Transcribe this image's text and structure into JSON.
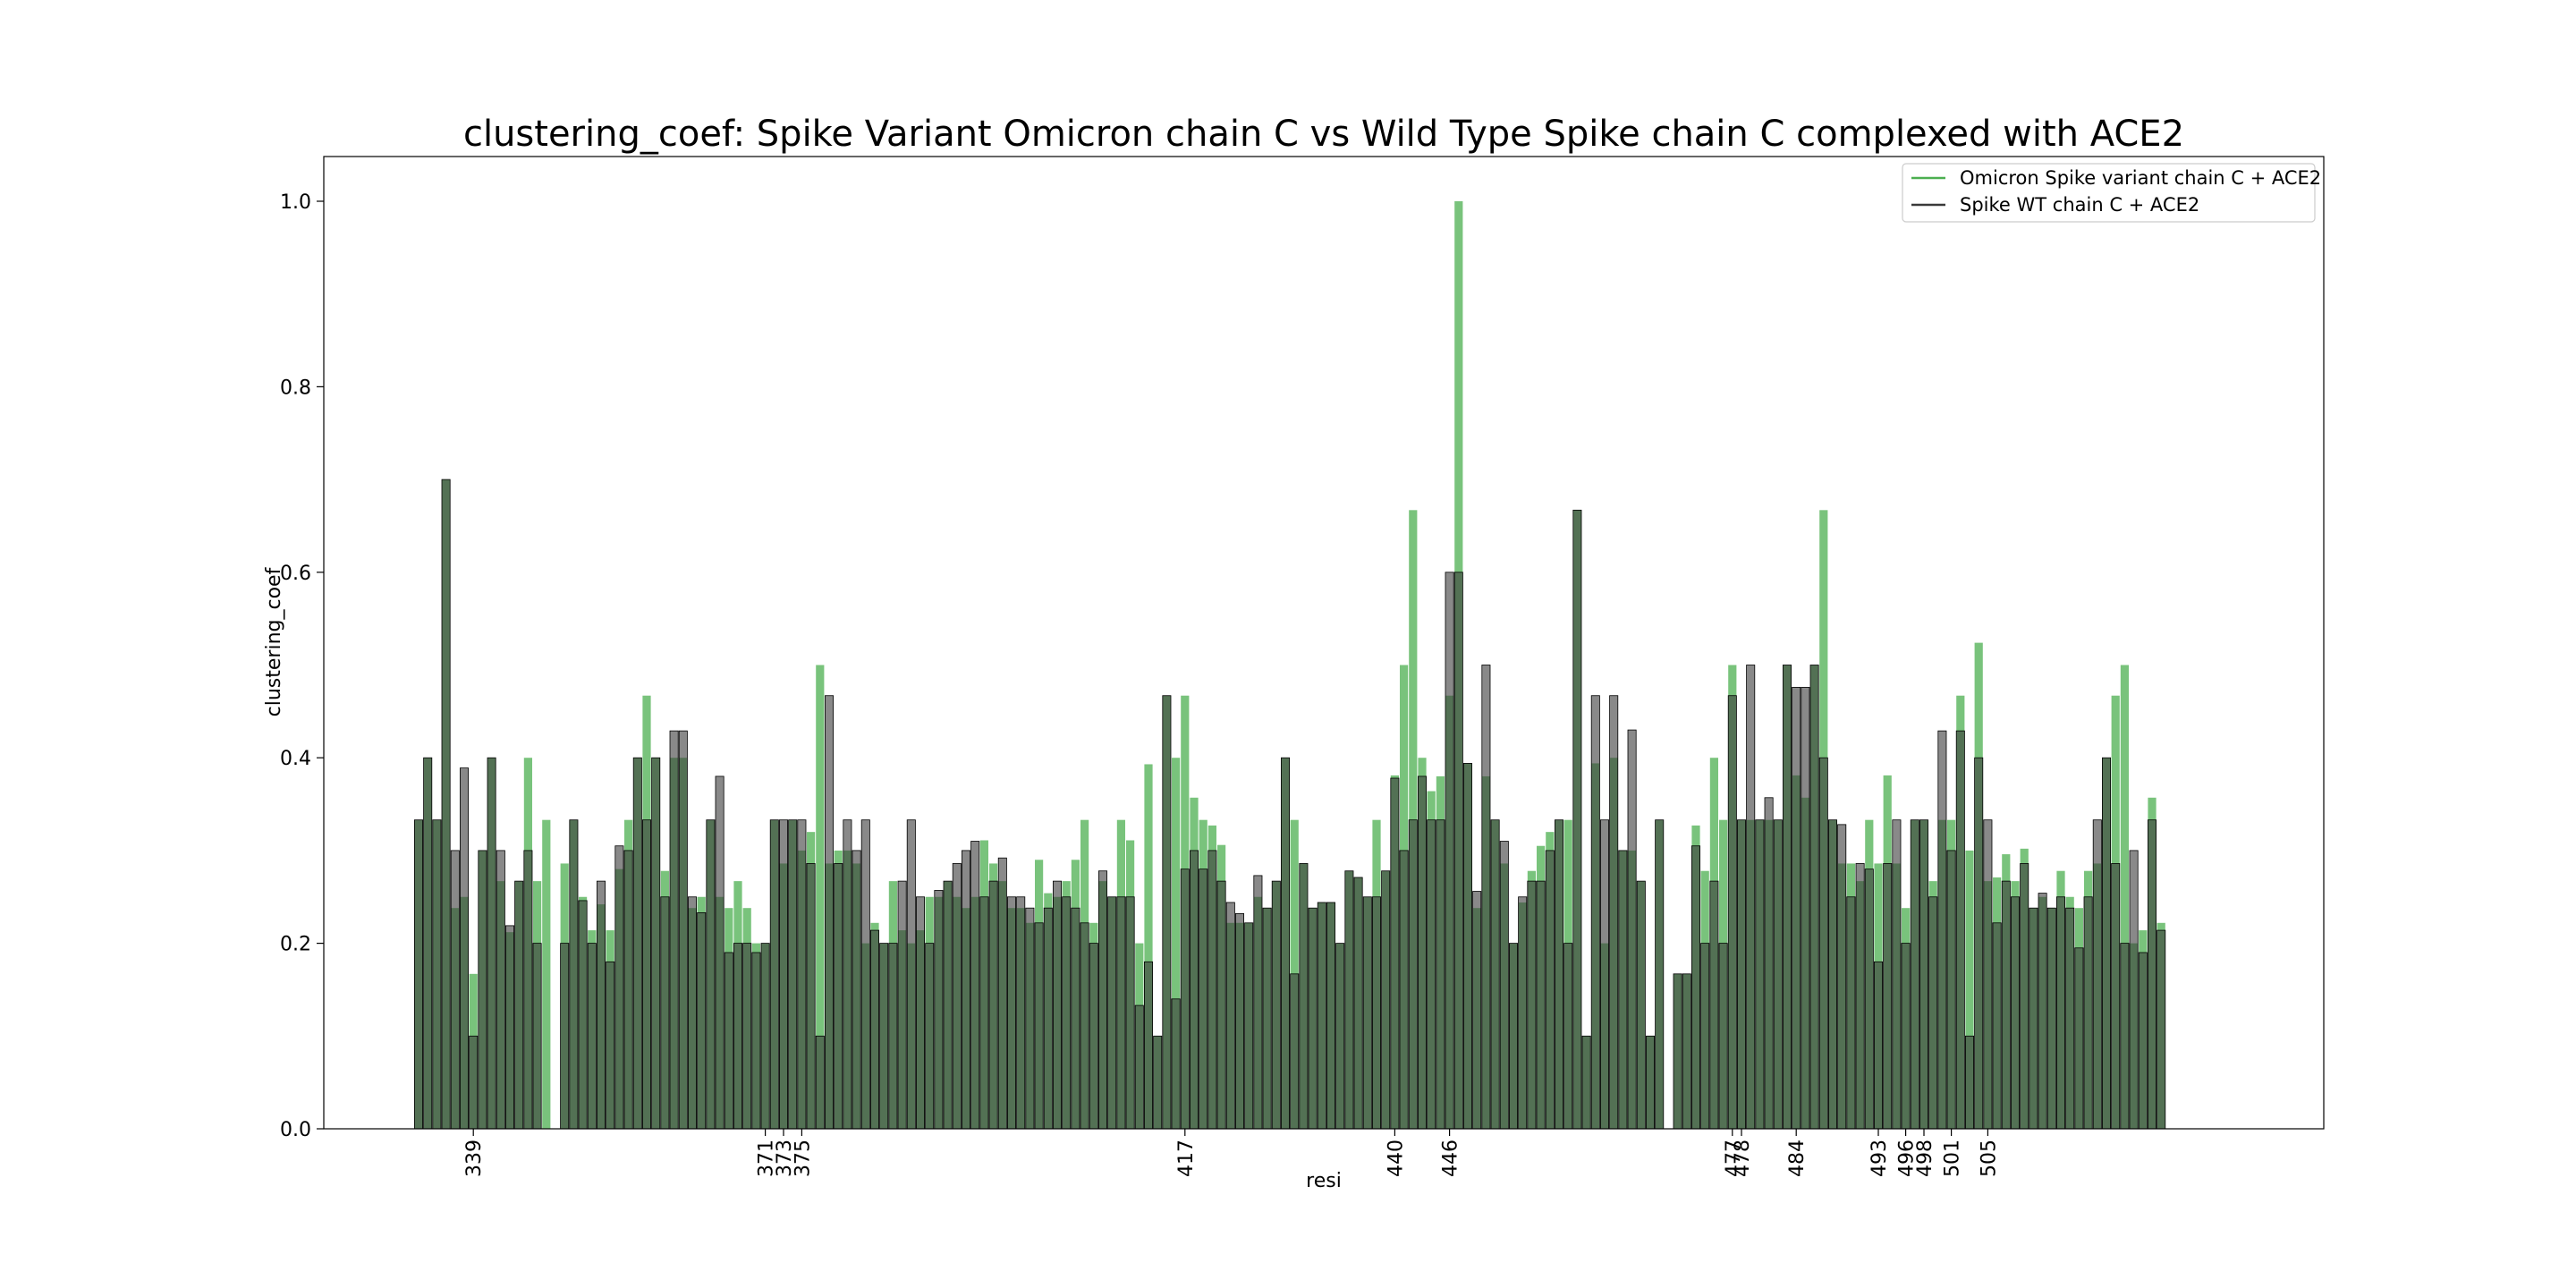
{
  "chart_data": {
    "type": "bar",
    "title": "clustering_coef: Spike Variant Omicron chain C vs Wild Type Spike chain C complexed with ACE2",
    "xlabel": "resi",
    "ylabel": "clustering_coef",
    "ylim": [
      0,
      1.05
    ],
    "yticks": [
      "0.0",
      "0.2",
      "0.4",
      "0.6",
      "0.8",
      "1.0"
    ],
    "xticks": [
      {
        "label": "339",
        "index": 6
      },
      {
        "label": "371",
        "index": 38
      },
      {
        "label": "373",
        "index": 40
      },
      {
        "label": "375",
        "index": 42
      },
      {
        "label": "417",
        "index": 84
      },
      {
        "label": "440",
        "index": 107
      },
      {
        "label": "446",
        "index": 113
      },
      {
        "label": "477",
        "index": 144
      },
      {
        "label": "478",
        "index": 145
      },
      {
        "label": "484",
        "index": 151
      },
      {
        "label": "493",
        "index": 160
      },
      {
        "label": "496",
        "index": 163
      },
      {
        "label": "498",
        "index": 165
      },
      {
        "label": "501",
        "index": 168
      },
      {
        "label": "505",
        "index": 172
      }
    ],
    "grid": false,
    "legend_position": "top-right",
    "series": [
      {
        "name": "Omicron Spike variant chain C + ACE2",
        "color": "#4caf50",
        "values": [
          0.333,
          0.4,
          0.333,
          0.7,
          0.238,
          0.25,
          0.167,
          0.3,
          0.4,
          0.267,
          0.212,
          0.267,
          0.4,
          0.267,
          0.333,
          0,
          0.286,
          0.333,
          0.25,
          0.214,
          0.242,
          0.214,
          0.28,
          0.333,
          0.4,
          0.467,
          0.4,
          0.278,
          0.4,
          0.4,
          0.238,
          0.25,
          0.333,
          0.25,
          0.238,
          0.267,
          0.238,
          0.2,
          0.2,
          0.333,
          0.286,
          0.333,
          0.3,
          0.32,
          0.5,
          0.286,
          0.3,
          0.3,
          0.286,
          0.2,
          0.222,
          0.2,
          0.267,
          0.214,
          0.2,
          0.214,
          0.25,
          0.25,
          0.267,
          0.25,
          0.238,
          0.25,
          0.311,
          0.286,
          0.267,
          0.238,
          0.238,
          0.222,
          0.29,
          0.254,
          0.25,
          0.267,
          0.29,
          0.333,
          0.222,
          0.267,
          0.25,
          0.333,
          0.311,
          0.2,
          0.393,
          0.1,
          0.467,
          0.4,
          0.467,
          0.357,
          0.333,
          0.327,
          0.306,
          0.222,
          0.222,
          0.222,
          0.25,
          0.238,
          0.267,
          0.4,
          0.333,
          0.286,
          0.238,
          0.244,
          0.244,
          0.2,
          0.278,
          0.271,
          0.25,
          0.333,
          0.278,
          0.381,
          0.5,
          0.667,
          0.4,
          0.364,
          0.38,
          0.467,
          1.0,
          0.394,
          0.238,
          0.38,
          0.333,
          0.286,
          0.2,
          0.244,
          0.278,
          0.305,
          0.32,
          0.333,
          0.333,
          0.667,
          0.1,
          0.394,
          0.2,
          0.4,
          0.3,
          0.3,
          0.267,
          0.1,
          0.333,
          0,
          0.167,
          0.167,
          0.327,
          0.278,
          0.4,
          0.333,
          0.5,
          0.333,
          0.333,
          0.333,
          0.333,
          0.333,
          0.5,
          0.381,
          0.357,
          0.5,
          0.667,
          0.333,
          0.286,
          0.286,
          0.267,
          0.333,
          0.286,
          0.381,
          0.286,
          0.238,
          0.333,
          0.333,
          0.267,
          0.333,
          0.333,
          0.467,
          0.3,
          0.524,
          0.267,
          0.271,
          0.296,
          0.267,
          0.302,
          0.238,
          0.25,
          0.238,
          0.278,
          0.25,
          0.238,
          0.278,
          0.286,
          0.4,
          0.467,
          0.5,
          0.2,
          0.214,
          0.357,
          0.222
        ]
      },
      {
        "name": "Spike WT chain C + ACE2",
        "color": "#3a3a3a",
        "values": [
          0.333,
          0.4,
          0.333,
          0.7,
          0.3,
          0.389,
          0.1,
          0.3,
          0.4,
          0.3,
          0.219,
          0.267,
          0.3,
          0.2,
          0,
          0,
          0.2,
          0.333,
          0.246,
          0.2,
          0.267,
          0.18,
          0.305,
          0.3,
          0.4,
          0.333,
          0.4,
          0.25,
          0.429,
          0.429,
          0.25,
          0.233,
          0.333,
          0.38,
          0.19,
          0.2,
          0.2,
          0.19,
          0.2,
          0.333,
          0.333,
          0.333,
          0.333,
          0.286,
          0.1,
          0.467,
          0.286,
          0.333,
          0.3,
          0.333,
          0.214,
          0.2,
          0.2,
          0.267,
          0.333,
          0.25,
          0.2,
          0.257,
          0.267,
          0.286,
          0.3,
          0.31,
          0.25,
          0.267,
          0.292,
          0.25,
          0.25,
          0.238,
          0.222,
          0.238,
          0.267,
          0.25,
          0.238,
          0.222,
          0.2,
          0.278,
          0.25,
          0.25,
          0.25,
          0.133,
          0.18,
          0.1,
          0.467,
          0.14,
          0.28,
          0.3,
          0.28,
          0.3,
          0.267,
          0.244,
          0.232,
          0.222,
          0.273,
          0.238,
          0.267,
          0.4,
          0.167,
          0.286,
          0.238,
          0.244,
          0.244,
          0.2,
          0.278,
          0.271,
          0.25,
          0.25,
          0.278,
          0.378,
          0.3,
          0.333,
          0.38,
          0.333,
          0.333,
          0.6,
          0.6,
          0.394,
          0.256,
          0.5,
          0.333,
          0.31,
          0.2,
          0.25,
          0.267,
          0.267,
          0.3,
          0.333,
          0.2,
          0.667,
          0.1,
          0.467,
          0.333,
          0.467,
          0.3,
          0.43,
          0.267,
          0.1,
          0.333,
          0,
          0.167,
          0.167,
          0.305,
          0.2,
          0.267,
          0.2,
          0.467,
          0.333,
          0.5,
          0.333,
          0.357,
          0.333,
          0.5,
          0.476,
          0.476,
          0.5,
          0.4,
          0.333,
          0.328,
          0.25,
          0.286,
          0.28,
          0.18,
          0.286,
          0.333,
          0.2,
          0.333,
          0.333,
          0.25,
          0.429,
          0.3,
          0.429,
          0.1,
          0.4,
          0.333,
          0.222,
          0.267,
          0.25,
          0.286,
          0.238,
          0.254,
          0.238,
          0.25,
          0.238,
          0.195,
          0.25,
          0.333,
          0.4,
          0.286,
          0.2,
          0.3,
          0.19,
          0.333,
          0.214
        ]
      }
    ]
  }
}
